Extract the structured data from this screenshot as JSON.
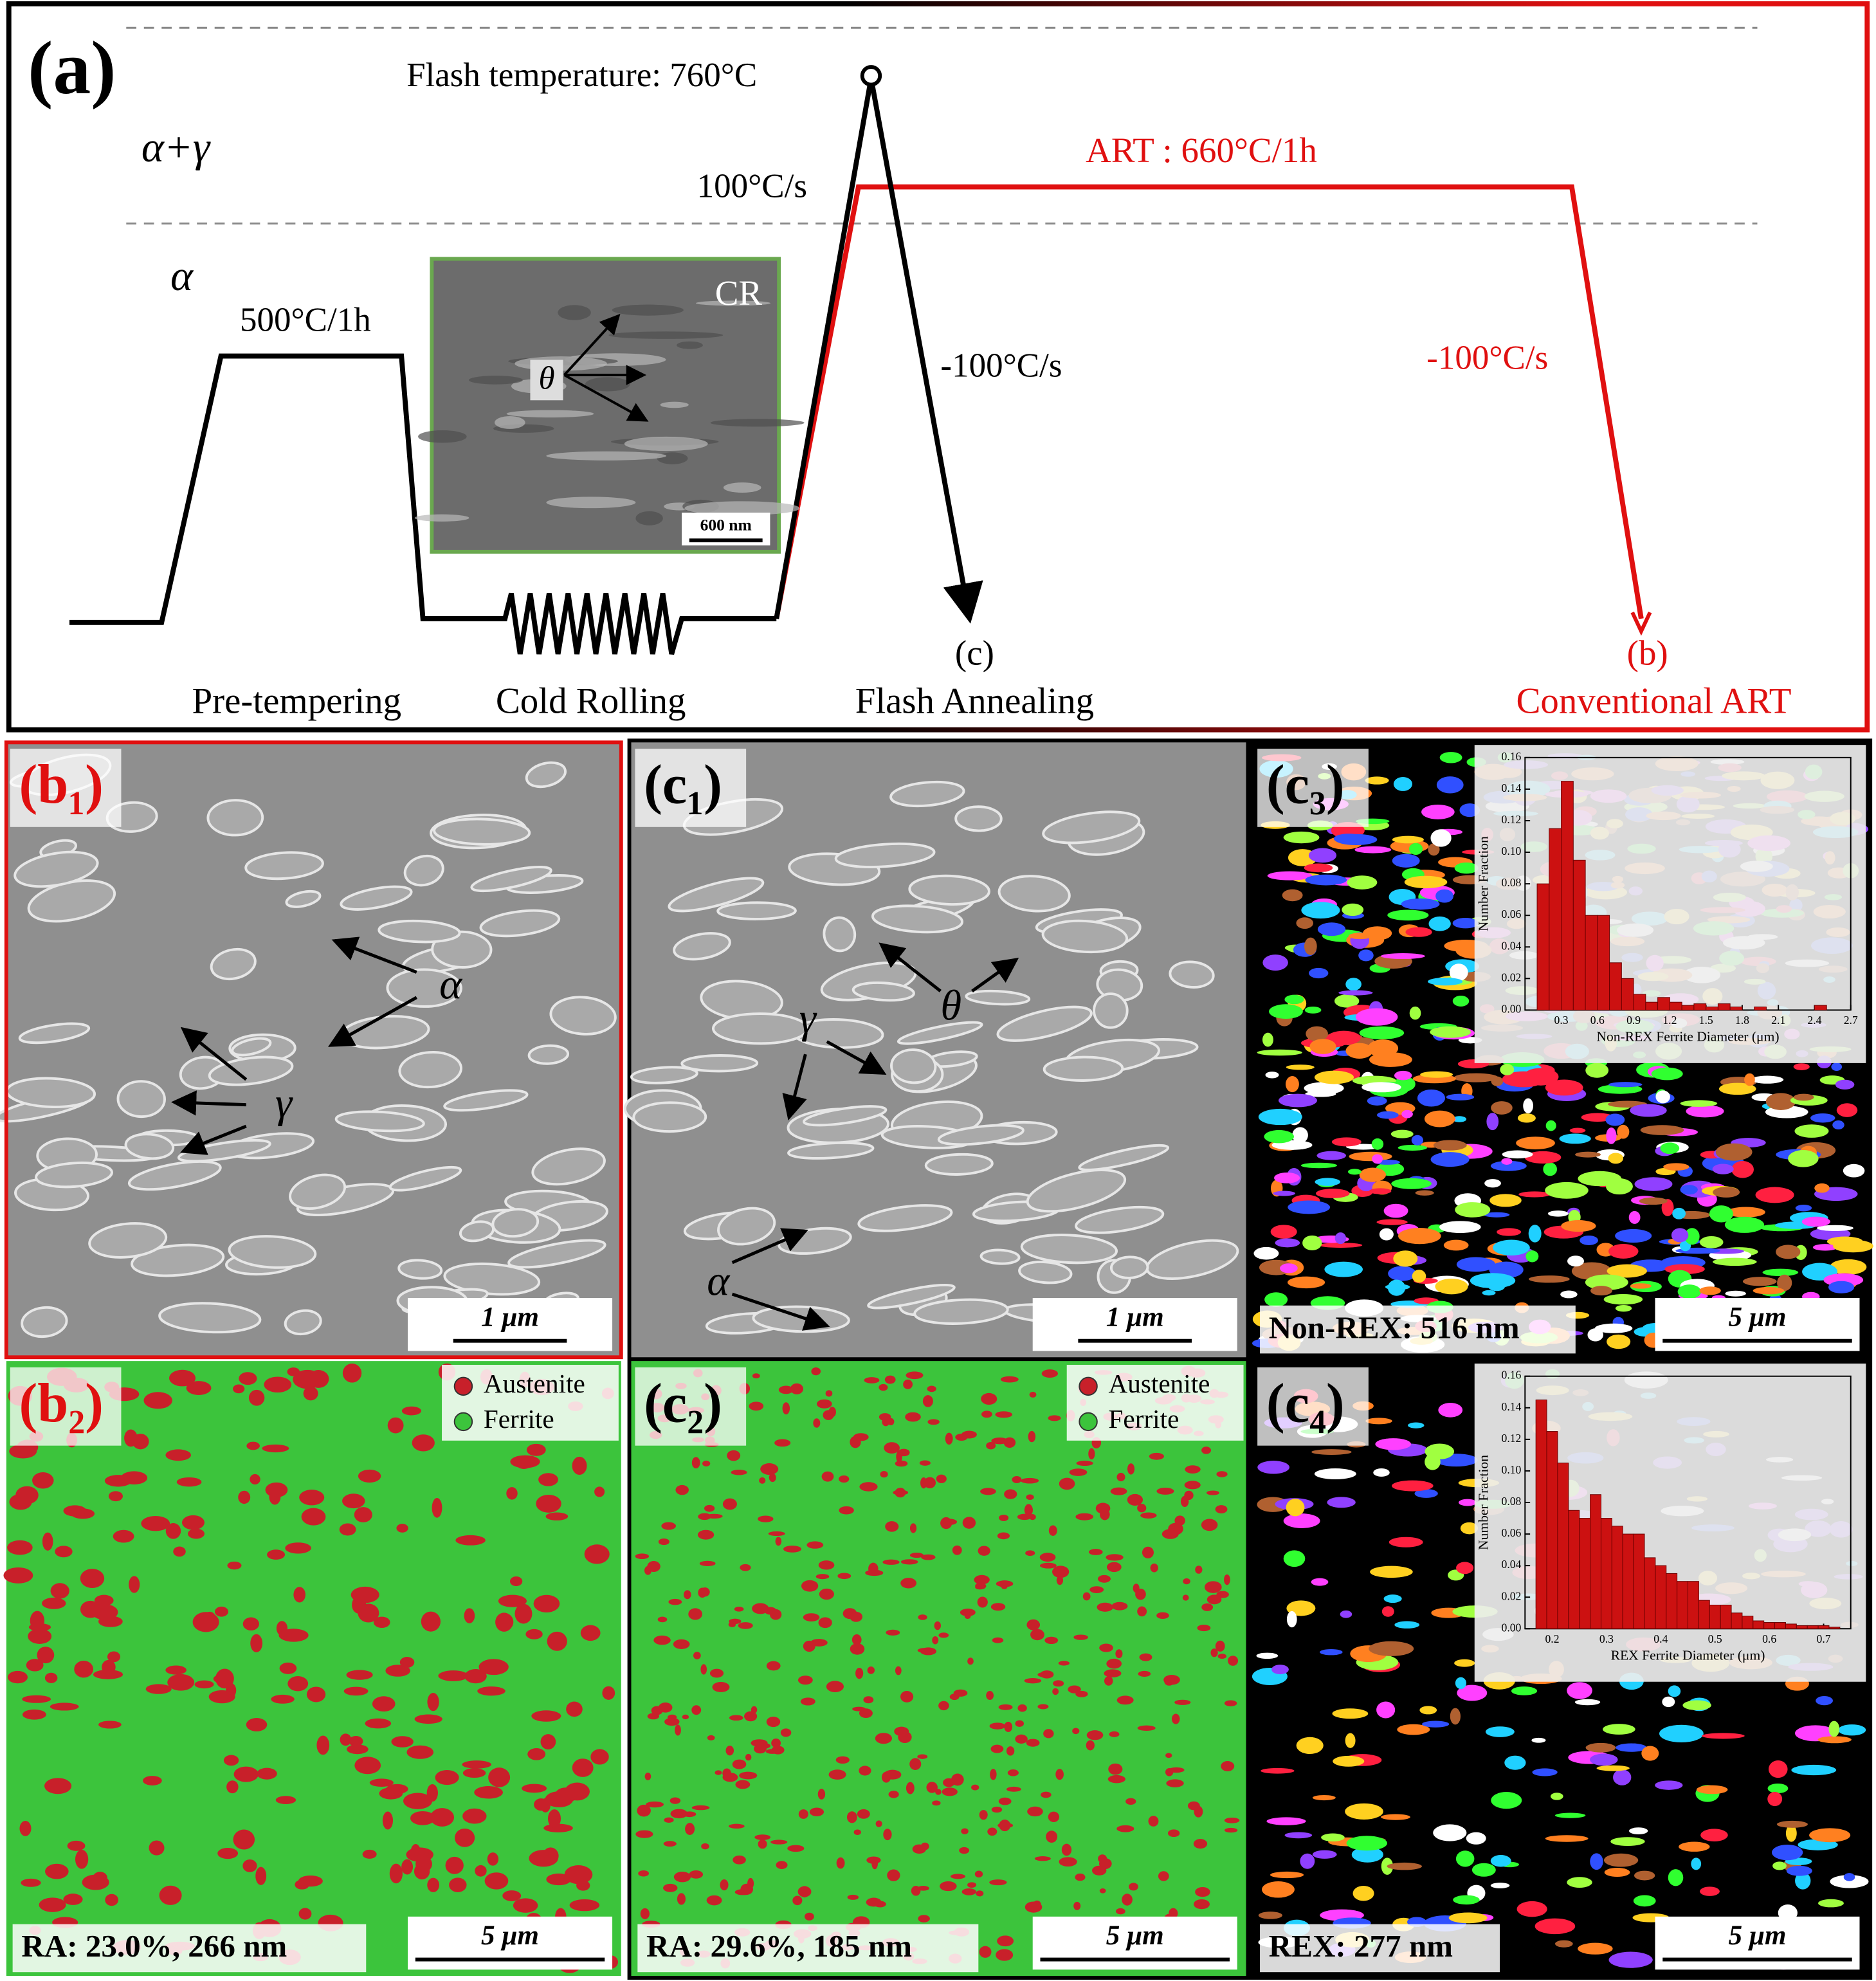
{
  "panel_a": {
    "label": "(a)",
    "phase_upper": "α+γ",
    "phase_lower": "α",
    "flash_temperature": "Flash temperature: 760°C",
    "heating_rate": "100°C/s",
    "art": "ART : 660°C/1h",
    "pre_temper": "500°C/1h",
    "flash_cooling": "-100°C/s",
    "art_cooling": "-100°C/s",
    "inset_label": "CR",
    "inset_particle": "θ",
    "inset_scale": "600 nm",
    "end_c": "(c)",
    "end_b": "(b)",
    "steps": [
      "Pre-tempering",
      "Cold Rolling",
      "Flash Annealing"
    ],
    "art_step": "Conventional ART"
  },
  "b1": {
    "label": "(b₁)",
    "alpha": "α",
    "gamma": "γ",
    "scale": "1 μm"
  },
  "b2": {
    "label": "(b₂)",
    "legend": [
      "Austenite",
      "Ferrite"
    ],
    "stats": "RA: 23.0%, 266 nm",
    "scale": "5 μm"
  },
  "c1": {
    "label": "(c₁)",
    "theta": "θ",
    "gamma": "γ",
    "alpha": "α",
    "scale": "1 μm"
  },
  "c2": {
    "label": "(c₂)",
    "legend": [
      "Austenite",
      "Ferrite"
    ],
    "stats": "RA: 29.6%, 185 nm",
    "scale": "5 μm"
  },
  "c3": {
    "label": "(c₃)",
    "stats": "Non-REX: 516 nm",
    "scale": "5 μm"
  },
  "c4": {
    "label": "(c₄)",
    "stats": "REX: 277 nm",
    "scale": "5 μm"
  },
  "chart_data": [
    {
      "type": "histogram",
      "x_label": "Non-REX Ferrite Diameter (μm)",
      "y_label": "Number Fraction",
      "color": "#cc1111",
      "bins": [
        0.1,
        0.2,
        0.3,
        0.4,
        0.5,
        0.6,
        0.7,
        0.8,
        0.9,
        1.0,
        1.1,
        1.2,
        1.3,
        1.4,
        1.5,
        1.6,
        1.7,
        1.8,
        1.9,
        2.0,
        2.1,
        2.2,
        2.3,
        2.4,
        2.5
      ],
      "values": [
        0.08,
        0.115,
        0.145,
        0.095,
        0.06,
        0.06,
        0.03,
        0.02,
        0.01,
        0.005,
        0.008,
        0.005,
        0.003,
        0.004,
        0.002,
        0.004,
        0.002,
        0,
        0.002,
        0,
        0,
        0,
        0,
        0.003
      ],
      "xlim": [
        0,
        2.7
      ],
      "xticks": [
        0.3,
        0.6,
        0.9,
        1.2,
        1.5,
        1.8,
        2.1,
        2.4,
        2.7
      ],
      "ylim": [
        0,
        0.16
      ],
      "yticks": [
        {
          "value": 0,
          "label": "0.00"
        },
        0.02,
        0.04,
        0.06,
        0.08,
        {
          "value": 0.1,
          "label": "0.10"
        },
        0.12,
        0.14,
        0.16
      ]
    },
    {
      "type": "histogram",
      "x_label": "REX Ferrite Diameter (μm)",
      "y_label": "Number Fraction",
      "color": "#cc1111",
      "bins": [
        0.17,
        0.19,
        0.21,
        0.23,
        0.25,
        0.27,
        0.29,
        0.31,
        0.33,
        0.35,
        0.37,
        0.39,
        0.41,
        0.43,
        0.45,
        0.47,
        0.49,
        0.51,
        0.53,
        0.55,
        0.57,
        0.59,
        0.61,
        0.63,
        0.65,
        0.67,
        0.69,
        0.71,
        0.73
      ],
      "values": [
        0.145,
        0.125,
        0.105,
        0.075,
        0.07,
        0.085,
        0.07,
        0.065,
        0.06,
        0.06,
        0.045,
        0.04,
        0.035,
        0.03,
        0.03,
        0.018,
        0.015,
        0.015,
        0.01,
        0.008,
        0.005,
        0.004,
        0.004,
        0.003,
        0.002,
        0.002,
        0.002,
        0.001
      ],
      "xlim": [
        0.15,
        0.75
      ],
      "xticks": [
        0.2,
        0.3,
        0.4,
        0.5,
        0.6,
        0.7
      ],
      "ylim": [
        0,
        0.16
      ],
      "yticks": [
        {
          "value": 0,
          "label": "0.00"
        },
        0.02,
        0.04,
        0.06,
        0.08,
        {
          "value": 0.1,
          "label": "0.10"
        },
        0.12,
        0.14,
        0.16
      ]
    }
  ]
}
